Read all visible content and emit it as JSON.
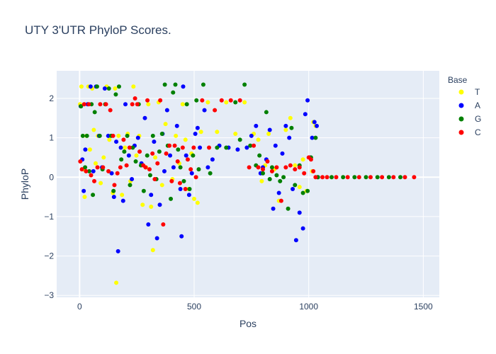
{
  "chart_data": {
    "type": "scatter",
    "title": "UTY 3'UTR PhyloP Scores.",
    "xlabel": "Pos",
    "ylabel": "PhyloP",
    "xlim": [
      -100,
      1570
    ],
    "ylim": [
      -3.05,
      2.7
    ],
    "x_ticks": [
      0,
      500,
      1000,
      1500
    ],
    "y_ticks": [
      -3,
      -2,
      -1,
      0,
      1,
      2
    ],
    "grid": true,
    "legend_title": "Base",
    "legend_position": "right",
    "series": [
      {
        "name": "T",
        "color": "#ffff00",
        "points": [
          [
            2,
            1.85
          ],
          [
            8,
            2.3
          ],
          [
            15,
            0.2
          ],
          [
            22,
            -0.5
          ],
          [
            30,
            1.05
          ],
          [
            38,
            2.3
          ],
          [
            45,
            0.7
          ],
          [
            55,
            2.25
          ],
          [
            62,
            1.2
          ],
          [
            70,
            0.35
          ],
          [
            80,
            1.05
          ],
          [
            92,
            -0.15
          ],
          [
            105,
            0.5
          ],
          [
            118,
            2.3
          ],
          [
            130,
            0.95
          ],
          [
            145,
            -0.4
          ],
          [
            155,
            2.25
          ],
          [
            160,
            -2.68
          ],
          [
            170,
            1.05
          ],
          [
            185,
            -0.45
          ],
          [
            198,
            0.75
          ],
          [
            210,
            1.1
          ],
          [
            222,
            -0.1
          ],
          [
            235,
            2.3
          ],
          [
            248,
            0.55
          ],
          [
            260,
            1.05
          ],
          [
            275,
            -0.7
          ],
          [
            290,
            0.25
          ],
          [
            300,
            1.85
          ],
          [
            312,
            -0.75
          ],
          [
            320,
            -1.85
          ],
          [
            330,
            0.5
          ],
          [
            345,
            1.9
          ],
          [
            360,
            -0.2
          ],
          [
            375,
            1.35
          ],
          [
            390,
            0.8
          ],
          [
            405,
            -0.05
          ],
          [
            420,
            1.05
          ],
          [
            435,
            0.35
          ],
          [
            450,
            1.85
          ],
          [
            462,
            0.95
          ],
          [
            475,
            -0.3
          ],
          [
            488,
            0.6
          ],
          [
            500,
            -0.55
          ],
          [
            515,
            -0.65
          ],
          [
            530,
            1.15
          ],
          [
            560,
            1.9
          ],
          [
            600,
            1.15
          ],
          [
            640,
            1.9
          ],
          [
            680,
            1.1
          ],
          [
            720,
            1.9
          ],
          [
            760,
            1.1
          ],
          [
            780,
            0.95
          ],
          [
            795,
            -0.1
          ],
          [
            810,
            0.3
          ],
          [
            825,
            1.1
          ],
          [
            850,
            0.2
          ],
          [
            870,
            -0.6
          ],
          [
            900,
            1.2
          ],
          [
            920,
            1.5
          ],
          [
            940,
            0.3
          ],
          [
            960,
            -0.25
          ],
          [
            975,
            0.45
          ],
          [
            990,
            -0.35
          ],
          [
            1005,
            0.5
          ],
          [
            1015,
            0.15
          ],
          [
            1020,
            1.4
          ],
          [
            1030,
            1.3
          ],
          [
            1040,
            0.0
          ]
        ]
      },
      {
        "name": "A",
        "color": "#0000ff",
        "points": [
          [
            5,
            1.8
          ],
          [
            12,
            0.45
          ],
          [
            18,
            -0.35
          ],
          [
            25,
            0.7
          ],
          [
            35,
            1.85
          ],
          [
            48,
            2.3
          ],
          [
            60,
            0.15
          ],
          [
            72,
            2.3
          ],
          [
            85,
            1.05
          ],
          [
            98,
            0.25
          ],
          [
            110,
            2.25
          ],
          [
            125,
            1.05
          ],
          [
            140,
            0.1
          ],
          [
            150,
            -0.5
          ],
          [
            160,
            0.9
          ],
          [
            168,
            -1.88
          ],
          [
            180,
            0.75
          ],
          [
            190,
            -0.6
          ],
          [
            200,
            1.85
          ],
          [
            215,
            0.55
          ],
          [
            228,
            -0.05
          ],
          [
            240,
            0.8
          ],
          [
            255,
            1.0
          ],
          [
            270,
            0.35
          ],
          [
            285,
            1.5
          ],
          [
            300,
            -1.2
          ],
          [
            312,
            -0.45
          ],
          [
            325,
            0.9
          ],
          [
            338,
            -1.55
          ],
          [
            350,
            -0.7
          ],
          [
            362,
            1.1
          ],
          [
            370,
            0.15
          ],
          [
            382,
            1.7
          ],
          [
            395,
            0.55
          ],
          [
            410,
            0.25
          ],
          [
            425,
            1.3
          ],
          [
            440,
            -0.3
          ],
          [
            445,
            -1.5
          ],
          [
            452,
            2.3
          ],
          [
            465,
            0.55
          ],
          [
            478,
            -0.45
          ],
          [
            490,
            0.1
          ],
          [
            505,
            1.1
          ],
          [
            515,
            1.25
          ],
          [
            525,
            0.75
          ],
          [
            545,
            1.7
          ],
          [
            560,
            0.25
          ],
          [
            580,
            0.45
          ],
          [
            610,
            0.8
          ],
          [
            650,
            0.75
          ],
          [
            690,
            0.7
          ],
          [
            730,
            0.75
          ],
          [
            750,
            1.05
          ],
          [
            770,
            1.3
          ],
          [
            790,
            0.1
          ],
          [
            800,
            0.25
          ],
          [
            815,
            0.45
          ],
          [
            830,
            1.2
          ],
          [
            845,
            -0.8
          ],
          [
            855,
            0.8
          ],
          [
            870,
            -0.4
          ],
          [
            885,
            0.6
          ],
          [
            900,
            1.3
          ],
          [
            915,
            1.0
          ],
          [
            930,
            -0.3
          ],
          [
            945,
            -1.6
          ],
          [
            960,
            -0.9
          ],
          [
            975,
            -1.3
          ],
          [
            985,
            1.6
          ],
          [
            995,
            1.95
          ],
          [
            1005,
            0.5
          ],
          [
            1015,
            1.0
          ],
          [
            1025,
            1.4
          ],
          [
            1035,
            1.3
          ],
          [
            1040,
            0.0
          ]
        ]
      },
      {
        "name": "G",
        "color": "#008000",
        "points": [
          [
            6,
            1.8
          ],
          [
            14,
            1.05
          ],
          [
            24,
            0.25
          ],
          [
            32,
            1.05
          ],
          [
            42,
            0.15
          ],
          [
            52,
            1.85
          ],
          [
            58,
            -0.45
          ],
          [
            66,
            1.65
          ],
          [
            76,
            2.3
          ],
          [
            88,
            1.05
          ],
          [
            100,
            0.2
          ],
          [
            112,
            1.85
          ],
          [
            128,
            2.25
          ],
          [
            138,
            1.05
          ],
          [
            148,
            -0.35
          ],
          [
            158,
            2.1
          ],
          [
            172,
            2.3
          ],
          [
            182,
            0.45
          ],
          [
            195,
            0.65
          ],
          [
            208,
            1.05
          ],
          [
            220,
            -0.2
          ],
          [
            232,
            0.75
          ],
          [
            245,
            0.4
          ],
          [
            258,
            1.85
          ],
          [
            268,
            0.3
          ],
          [
            280,
            -0.35
          ],
          [
            295,
            0.55
          ],
          [
            308,
            0.05
          ],
          [
            320,
            1.05
          ],
          [
            335,
            -0.05
          ],
          [
            348,
            0.65
          ],
          [
            360,
            1.1
          ],
          [
            372,
            2.35
          ],
          [
            385,
            0.8
          ],
          [
            398,
            -0.55
          ],
          [
            408,
            2.15
          ],
          [
            418,
            2.35
          ],
          [
            430,
            0.7
          ],
          [
            440,
            0.25
          ],
          [
            455,
            -0.1
          ],
          [
            468,
            1.85
          ],
          [
            480,
            -0.3
          ],
          [
            495,
            0.55
          ],
          [
            510,
            1.95
          ],
          [
            520,
            0.2
          ],
          [
            540,
            2.35
          ],
          [
            570,
            0.1
          ],
          [
            600,
            0.75
          ],
          [
            640,
            0.75
          ],
          [
            680,
            1.9
          ],
          [
            700,
            0.95
          ],
          [
            720,
            2.35
          ],
          [
            745,
            0.8
          ],
          [
            770,
            0.3
          ],
          [
            785,
            0.55
          ],
          [
            800,
            0.1
          ],
          [
            815,
            1.65
          ],
          [
            830,
            -0.05
          ],
          [
            840,
            0.25
          ],
          [
            860,
            0.05
          ],
          [
            875,
            -0.1
          ],
          [
            890,
            0.0
          ],
          [
            910,
            -0.8
          ],
          [
            925,
            1.25
          ],
          [
            940,
            -0.2
          ],
          [
            960,
            0.3
          ],
          [
            975,
            -0.4
          ],
          [
            995,
            -0.35
          ],
          [
            1010,
            0.5
          ],
          [
            1030,
            1.0
          ],
          [
            1040,
            0.0
          ],
          [
            1100,
            0.0
          ],
          [
            1150,
            0.0
          ],
          [
            1200,
            0.0
          ],
          [
            1250,
            0.0
          ],
          [
            1300,
            0.0
          ],
          [
            1350,
            0.0
          ],
          [
            1400,
            0.0
          ]
        ]
      },
      {
        "name": "C",
        "color": "#ff0000",
        "points": [
          [
            3,
            0.4
          ],
          [
            10,
            0.2
          ],
          [
            20,
            1.85
          ],
          [
            28,
            0.15
          ],
          [
            40,
            1.85
          ],
          [
            50,
            0.05
          ],
          [
            64,
            -0.1
          ],
          [
            78,
            0.25
          ],
          [
            90,
            1.85
          ],
          [
            102,
            0.25
          ],
          [
            115,
            1.85
          ],
          [
            126,
            0.15
          ],
          [
            134,
            1.7
          ],
          [
            146,
            1.05
          ],
          [
            152,
            -0.2
          ],
          [
            165,
            0.1
          ],
          [
            178,
            0.25
          ],
          [
            192,
            0.95
          ],
          [
            205,
            0.3
          ],
          [
            218,
            0.75
          ],
          [
            230,
            1.85
          ],
          [
            242,
            2.0
          ],
          [
            252,
            1.85
          ],
          [
            262,
            0.65
          ],
          [
            278,
            0.3
          ],
          [
            288,
            0.25
          ],
          [
            296,
            1.95
          ],
          [
            305,
            0.2
          ],
          [
            318,
            0.6
          ],
          [
            328,
            -0.05
          ],
          [
            340,
            0.35
          ],
          [
            352,
            1.95
          ],
          [
            365,
            -1.2
          ],
          [
            378,
            0.6
          ],
          [
            392,
            0.8
          ],
          [
            402,
            -0.1
          ],
          [
            415,
            0.8
          ],
          [
            428,
            0.4
          ],
          [
            438,
            -0.15
          ],
          [
            450,
            0.75
          ],
          [
            462,
            -0.3
          ],
          [
            472,
            0.45
          ],
          [
            485,
            0.2
          ],
          [
            498,
            0.75
          ],
          [
            508,
            0.0
          ],
          [
            535,
            1.95
          ],
          [
            565,
            0.75
          ],
          [
            590,
            1.7
          ],
          [
            620,
            1.95
          ],
          [
            660,
            1.95
          ],
          [
            700,
            1.95
          ],
          [
            740,
            0.25
          ],
          [
            760,
            0.8
          ],
          [
            780,
            0.25
          ],
          [
            800,
            0.2
          ],
          [
            820,
            0.4
          ],
          [
            840,
            0.15
          ],
          [
            860,
            0.25
          ],
          [
            880,
            -0.6
          ],
          [
            900,
            0.25
          ],
          [
            920,
            0.3
          ],
          [
            940,
            0.2
          ],
          [
            960,
            0.25
          ],
          [
            980,
            0.1
          ],
          [
            1000,
            0.5
          ],
          [
            1010,
            0.45
          ],
          [
            1020,
            0.15
          ],
          [
            1030,
            0.0
          ],
          [
            1060,
            0.0
          ],
          [
            1080,
            0.0
          ],
          [
            1120,
            0.0
          ],
          [
            1170,
            0.0
          ],
          [
            1220,
            0.0
          ],
          [
            1270,
            0.0
          ],
          [
            1320,
            0.0
          ],
          [
            1370,
            0.0
          ],
          [
            1420,
            0.0
          ],
          [
            1460,
            0.0
          ]
        ]
      }
    ]
  }
}
